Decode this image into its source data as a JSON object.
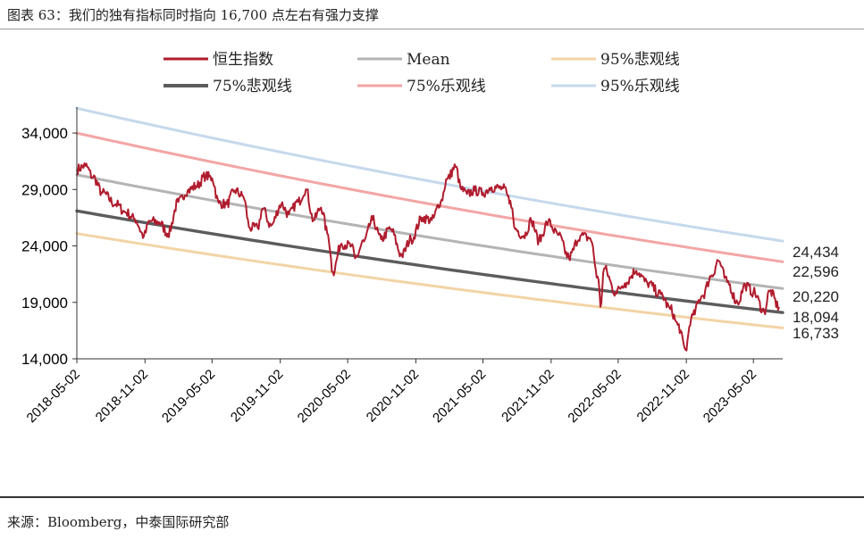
{
  "header": {
    "title": "图表 63：我们的独有指标同时指向 16,700 点左右有强力支撑"
  },
  "footer": {
    "source": "来源：Bloomberg，中泰国际研究部"
  },
  "colors": {
    "hsi": "#b01c2e",
    "mean": "#b4b4b4",
    "bear95": "#f2d4a6",
    "bear75": "#5c5c5c",
    "bull75": "#f3a5a5",
    "bull95": "#c6d9ec",
    "axis": "#333333"
  },
  "chart_data": {
    "type": "line",
    "title": "",
    "xlabel": "",
    "ylabel": "",
    "ylim": [
      14000,
      36300
    ],
    "xlim": [
      "2018-05-02",
      "2023-07-20"
    ],
    "y_ticks": [
      14000,
      19000,
      24000,
      29000,
      34000
    ],
    "y_tick_labels": [
      "14,000",
      "19,000",
      "24,000",
      "29,000",
      "34,000"
    ],
    "x_ticks": [
      "2018-05-02",
      "2018-11-02",
      "2019-05-02",
      "2019-11-02",
      "2020-05-02",
      "2020-11-02",
      "2021-05-02",
      "2021-11-02",
      "2022-05-02",
      "2022-11-02",
      "2023-05-02"
    ],
    "legend": [
      {
        "name": "恒生指数",
        "color": "#b01c2e"
      },
      {
        "name": "Mean",
        "color": "#b4b4b4"
      },
      {
        "name": "95%悲观线",
        "color": "#f2d4a6"
      },
      {
        "name": "75%悲观线",
        "color": "#5c5c5c"
      },
      {
        "name": "75%乐观线",
        "color": "#f3a5a5"
      },
      {
        "name": "95%乐观线",
        "color": "#c6d9ec"
      }
    ],
    "bands": [
      {
        "name": "95%乐观线",
        "start": 36200,
        "end": 24434,
        "end_label": "24,434"
      },
      {
        "name": "75%乐观线",
        "start": 34000,
        "end": 22596,
        "end_label": "22,596"
      },
      {
        "name": "Mean",
        "start": 30300,
        "end": 20220,
        "end_label": "20,220"
      },
      {
        "name": "75%悲观线",
        "start": 27100,
        "end": 18094,
        "end_label": "18,094"
      },
      {
        "name": "95%悲观线",
        "start": 25100,
        "end": 16733,
        "end_label": "16,733"
      }
    ],
    "hsi": {
      "name": "恒生指数",
      "points": [
        [
          "2018-05-02",
          30800
        ],
        [
          "2018-05-25",
          31100
        ],
        [
          "2018-06-15",
          30100
        ],
        [
          "2018-07-10",
          28700
        ],
        [
          "2018-08-15",
          27700
        ],
        [
          "2018-09-10",
          27000
        ],
        [
          "2018-10-05",
          26400
        ],
        [
          "2018-10-30",
          24900
        ],
        [
          "2018-11-15",
          26200
        ],
        [
          "2018-12-10",
          26100
        ],
        [
          "2019-01-03",
          25100
        ],
        [
          "2019-01-31",
          27900
        ],
        [
          "2019-02-25",
          28900
        ],
        [
          "2019-03-20",
          29300
        ],
        [
          "2019-04-15",
          30200
        ],
        [
          "2019-05-02",
          30000
        ],
        [
          "2019-05-20",
          27800
        ],
        [
          "2019-06-10",
          27700
        ],
        [
          "2019-07-02",
          28900
        ],
        [
          "2019-07-25",
          28400
        ],
        [
          "2019-08-12",
          25600
        ],
        [
          "2019-09-02",
          25600
        ],
        [
          "2019-09-15",
          27300
        ],
        [
          "2019-10-08",
          25800
        ],
        [
          "2019-11-05",
          27700
        ],
        [
          "2019-11-25",
          26800
        ],
        [
          "2019-12-20",
          27900
        ],
        [
          "2020-01-10",
          29000
        ],
        [
          "2020-01-31",
          26300
        ],
        [
          "2020-02-20",
          27400
        ],
        [
          "2020-03-10",
          25000
        ],
        [
          "2020-03-23",
          21700
        ],
        [
          "2020-04-15",
          24200
        ],
        [
          "2020-05-12",
          24000
        ],
        [
          "2020-05-22",
          22900
        ],
        [
          "2020-06-15",
          24400
        ],
        [
          "2020-07-08",
          26300
        ],
        [
          "2020-07-31",
          24600
        ],
        [
          "2020-08-25",
          25500
        ],
        [
          "2020-09-25",
          23200
        ],
        [
          "2020-10-20",
          24600
        ],
        [
          "2020-11-20",
          26500
        ],
        [
          "2020-12-15",
          26300
        ],
        [
          "2021-01-08",
          27900
        ],
        [
          "2021-01-25",
          29900
        ],
        [
          "2021-02-17",
          31000
        ],
        [
          "2021-03-05",
          29000
        ],
        [
          "2021-03-20",
          28600
        ],
        [
          "2021-04-10",
          28900
        ],
        [
          "2021-05-02",
          28700
        ],
        [
          "2021-05-25",
          29200
        ],
        [
          "2021-06-25",
          29100
        ],
        [
          "2021-07-15",
          28000
        ],
        [
          "2021-07-28",
          25500
        ],
        [
          "2021-08-20",
          24900
        ],
        [
          "2021-09-10",
          26200
        ],
        [
          "2021-09-30",
          24500
        ],
        [
          "2021-10-25",
          26100
        ],
        [
          "2021-11-20",
          25000
        ],
        [
          "2021-12-20",
          23000
        ],
        [
          "2022-01-20",
          24900
        ],
        [
          "2022-02-15",
          24700
        ],
        [
          "2022-03-10",
          21000
        ],
        [
          "2022-03-15",
          18600
        ],
        [
          "2022-03-25",
          22000
        ],
        [
          "2022-04-25",
          19900
        ],
        [
          "2022-05-20",
          20700
        ],
        [
          "2022-06-20",
          21800
        ],
        [
          "2022-07-20",
          20700
        ],
        [
          "2022-08-25",
          19700
        ],
        [
          "2022-09-20",
          18400
        ],
        [
          "2022-10-10",
          17000
        ],
        [
          "2022-10-31",
          14800
        ],
        [
          "2022-11-15",
          17600
        ],
        [
          "2022-12-15",
          19600
        ],
        [
          "2023-01-10",
          21400
        ],
        [
          "2023-01-27",
          22700
        ],
        [
          "2023-02-20",
          20800
        ],
        [
          "2023-03-20",
          19000
        ],
        [
          "2023-04-10",
          20500
        ],
        [
          "2023-05-02",
          19900
        ],
        [
          "2023-05-31",
          18200
        ],
        [
          "2023-06-15",
          20000
        ],
        [
          "2023-07-10",
          18600
        ]
      ]
    }
  }
}
